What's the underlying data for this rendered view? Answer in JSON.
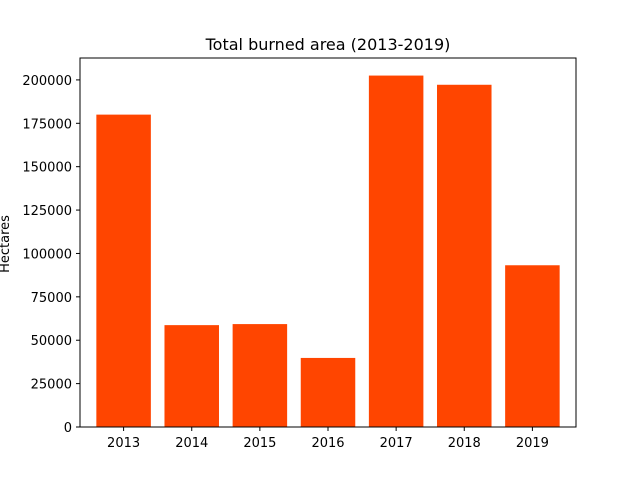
{
  "chart_data": {
    "type": "bar",
    "title": "Total burned area (2013-2019)",
    "xlabel": "",
    "ylabel": "Hectares",
    "categories": [
      "2013",
      "2014",
      "2015",
      "2016",
      "2017",
      "2018",
      "2019"
    ],
    "values": [
      180000,
      58700,
      59300,
      39800,
      202500,
      197200,
      93200
    ],
    "ylim": [
      0,
      212625
    ],
    "yticks": [
      0,
      25000,
      50000,
      75000,
      100000,
      125000,
      150000,
      175000,
      200000
    ],
    "ytick_labels": [
      "0",
      "25000",
      "50000",
      "75000",
      "100000",
      "125000",
      "150000",
      "175000",
      "200000"
    ],
    "bar_color": "#ff4500",
    "grid": false,
    "legend": "none"
  }
}
